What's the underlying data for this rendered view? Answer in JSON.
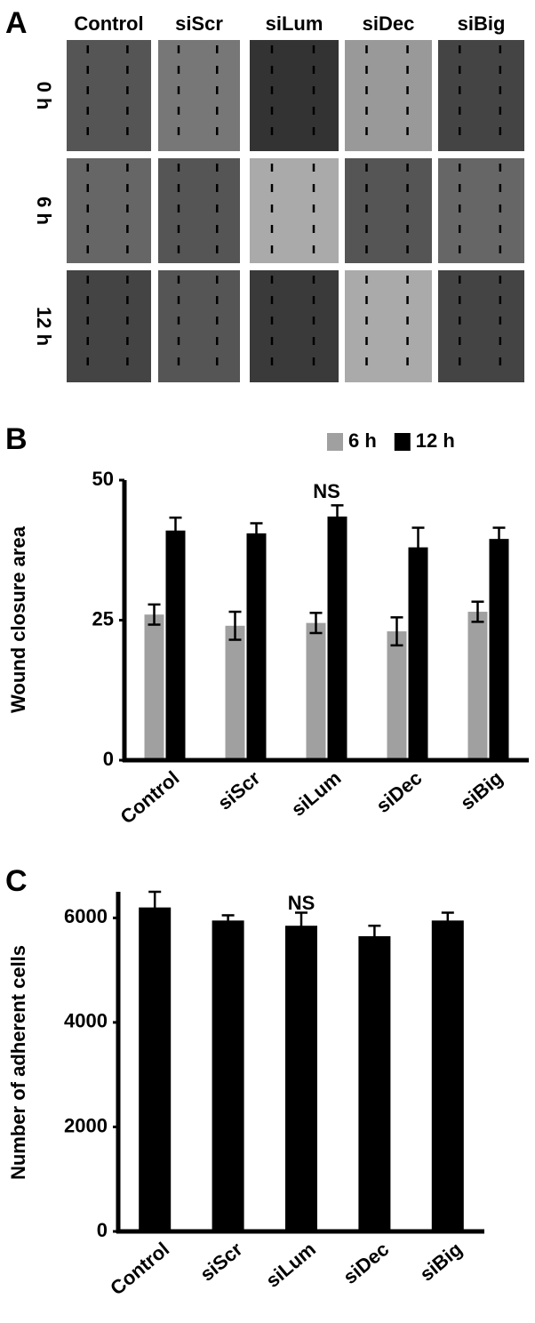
{
  "panel_labels": [
    "A",
    "B",
    "C"
  ],
  "image_grid": {
    "columns": [
      "Control",
      "siScr",
      "siLum",
      "siDec",
      "siBig"
    ],
    "rows": [
      "0 h",
      "6 h",
      "12 h"
    ]
  },
  "chart_data": [
    {
      "type": "bar",
      "y_label": "Wound closure area",
      "annotation": "NS",
      "categories": [
        "Control",
        "siScr",
        "siLum",
        "siDec",
        "siBig"
      ],
      "series": [
        {
          "name": "6 h",
          "color": "#a0a0a0",
          "values": [
            26,
            24,
            24.5,
            23,
            26.5
          ],
          "errors": [
            1.8,
            2.5,
            1.8,
            2.5,
            1.8
          ]
        },
        {
          "name": "12 h",
          "color": "#000000",
          "values": [
            41,
            40.5,
            43.5,
            38,
            39.5
          ],
          "errors": [
            2.3,
            1.8,
            2,
            3.5,
            2
          ]
        }
      ],
      "ylim": [
        0,
        50
      ],
      "yticks": [
        0,
        25,
        50
      ],
      "legend": "upper right"
    },
    {
      "type": "bar",
      "y_label": "Number of adherent cells",
      "annotation": "NS",
      "categories": [
        "Control",
        "siScr",
        "siLum",
        "siDec",
        "siBig"
      ],
      "values": [
        6200,
        5950,
        5850,
        5650,
        5950
      ],
      "errors": [
        300,
        100,
        250,
        200,
        150
      ],
      "color": "#000000",
      "ylim": [
        0,
        6500
      ],
      "yticks": [
        0,
        2000,
        4000,
        6000
      ]
    }
  ]
}
